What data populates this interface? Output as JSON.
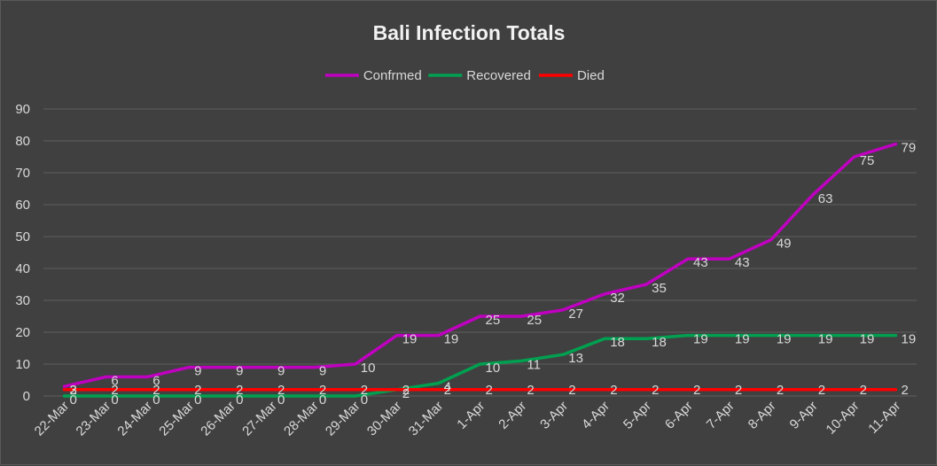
{
  "chart_data": {
    "type": "line",
    "title": "Bali Infection Totals",
    "xlabel": "",
    "ylabel": "",
    "ylim": [
      0,
      90
    ],
    "yticks": [
      0,
      10,
      20,
      30,
      40,
      50,
      60,
      70,
      80,
      90
    ],
    "grid": true,
    "legend": "top",
    "categories": [
      "22-Mar",
      "23-Mar",
      "24-Mar",
      "25-Mar",
      "26-Mar",
      "27-Mar",
      "28-Mar",
      "29-Mar",
      "30-Mar",
      "31-Mar",
      "1-Apr",
      "2-Apr",
      "3-Apr",
      "4-Apr",
      "5-Apr",
      "6-Apr",
      "7-Apr",
      "8-Apr",
      "9-Apr",
      "10-Apr",
      "11-Apr"
    ],
    "series": [
      {
        "name": "Confrmed",
        "color": "#c000c0",
        "values": [
          3,
          6,
          6,
          9,
          9,
          9,
          9,
          10,
          19,
          19,
          25,
          25,
          27,
          32,
          35,
          43,
          43,
          49,
          63,
          75,
          79
        ]
      },
      {
        "name": "Recovered",
        "color": "#00a050",
        "values": [
          0,
          0,
          0,
          0,
          0,
          0,
          0,
          0,
          2,
          4,
          10,
          11,
          13,
          18,
          18,
          19,
          19,
          19,
          19,
          19,
          19
        ]
      },
      {
        "name": "Died",
        "color": "#ff0000",
        "values": [
          2,
          2,
          2,
          2,
          2,
          2,
          2,
          2,
          2,
          2,
          2,
          2,
          2,
          2,
          2,
          2,
          2,
          2,
          2,
          2,
          2
        ]
      }
    ]
  }
}
